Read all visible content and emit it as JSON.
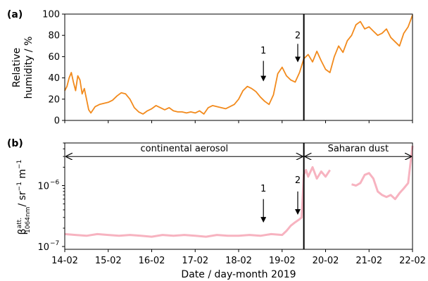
{
  "chart_data": [
    {
      "panel_label": "(a)",
      "type": "line",
      "ylabel_lines": [
        "Relative",
        "humidity / %"
      ],
      "xlim": [
        0,
        8
      ],
      "ylim": [
        0,
        100
      ],
      "yticks": [
        0,
        20,
        40,
        60,
        80,
        100
      ],
      "xticks": [
        0,
        1,
        2,
        3,
        4,
        5,
        6,
        7,
        8
      ],
      "series": [
        {
          "color": "#f28a1c",
          "x": [
            0.0,
            0.05,
            0.1,
            0.15,
            0.2,
            0.25,
            0.3,
            0.35,
            0.4,
            0.45,
            0.5,
            0.55,
            0.6,
            0.7,
            0.8,
            0.9,
            1.0,
            1.1,
            1.2,
            1.3,
            1.4,
            1.5,
            1.6,
            1.7,
            1.8,
            1.9,
            2.0,
            2.1,
            2.2,
            2.3,
            2.4,
            2.5,
            2.6,
            2.7,
            2.8,
            2.9,
            3.0,
            3.1,
            3.2,
            3.3,
            3.4,
            3.5,
            3.6,
            3.7,
            3.8,
            3.9,
            4.0,
            4.1,
            4.2,
            4.3,
            4.4,
            4.5,
            4.6,
            4.7,
            4.8,
            4.9,
            5.0,
            5.1,
            5.2,
            5.3,
            5.4,
            5.5,
            5.6,
            5.7,
            5.8,
            5.9,
            6.0,
            6.1,
            6.2,
            6.3,
            6.4,
            6.5,
            6.6,
            6.7,
            6.8,
            6.9,
            7.0,
            7.1,
            7.2,
            7.3,
            7.4,
            7.5,
            7.6,
            7.7,
            7.8,
            7.9,
            8.0
          ],
          "y": [
            28,
            32,
            40,
            45,
            36,
            28,
            42,
            38,
            25,
            30,
            20,
            10,
            7,
            13,
            15,
            16,
            17,
            19,
            23,
            26,
            25,
            20,
            12,
            8,
            6,
            9,
            11,
            14,
            12,
            10,
            12,
            9,
            8,
            8,
            7,
            8,
            7,
            9,
            6,
            12,
            14,
            13,
            12,
            11,
            13,
            15,
            20,
            28,
            32,
            30,
            27,
            22,
            18,
            15,
            24,
            44,
            50,
            42,
            38,
            36,
            45,
            58,
            62,
            55,
            65,
            56,
            48,
            45,
            60,
            70,
            64,
            75,
            80,
            90,
            93,
            86,
            88,
            84,
            80,
            82,
            86,
            78,
            74,
            70,
            82,
            88,
            99
          ]
        }
      ],
      "vline_x": 5.5,
      "annotations": [
        {
          "text": "1",
          "x": 4.57,
          "y_text": 63,
          "arrow_from_y": 56,
          "arrow_to_y": 38
        },
        {
          "text": "2",
          "x": 5.36,
          "y_text": 77,
          "arrow_from_y": 72,
          "arrow_to_y": 56
        }
      ]
    },
    {
      "panel_label": "(b)",
      "type": "line",
      "ylabel_main": "β",
      "ylabel_sup": "att.",
      "ylabel_sub": "1064nm",
      "ylabel_rest": "/ sr",
      "ylabel_exp1": "−1",
      "ylabel_m": " m",
      "ylabel_exp2": "−1",
      "y_scale": "log",
      "xlim": [
        0,
        8
      ],
      "ylim": [
        9e-08,
        5e-06
      ],
      "yticks": [
        {
          "value": 1e-07,
          "base": "10",
          "exp": "−7"
        },
        {
          "value": 1e-06,
          "base": "10",
          "exp": "−6"
        }
      ],
      "xticks": [
        {
          "value": 0,
          "label": "14-02"
        },
        {
          "value": 1,
          "label": "15-02"
        },
        {
          "value": 2,
          "label": "16-02"
        },
        {
          "value": 3,
          "label": "17-02"
        },
        {
          "value": 4,
          "label": "18-02"
        },
        {
          "value": 5,
          "label": "19-02"
        },
        {
          "value": 6,
          "label": "20-02"
        },
        {
          "value": 7,
          "label": "21-02"
        },
        {
          "value": 8,
          "label": "22-02"
        }
      ],
      "xlabel": "Date / day-month 2019",
      "series": [
        {
          "color": "#f7b3c0",
          "segments": [
            {
              "x": [
                0.0,
                0.25,
                0.5,
                0.75,
                1.0,
                1.25,
                1.5,
                1.75,
                2.0,
                2.25,
                2.5,
                2.75,
                3.0,
                3.25,
                3.5,
                3.75,
                4.0,
                4.25,
                4.5,
                4.75,
                5.0,
                5.1,
                5.2,
                5.3,
                5.4,
                5.45,
                5.5,
                5.55,
                5.6,
                5.7,
                5.8,
                5.9,
                6.0,
                6.1
              ],
              "y": [
                1.6e-07,
                1.55e-07,
                1.5e-07,
                1.6e-07,
                1.55e-07,
                1.5e-07,
                1.55e-07,
                1.5e-07,
                1.45e-07,
                1.55e-07,
                1.5e-07,
                1.55e-07,
                1.5e-07,
                1.45e-07,
                1.55e-07,
                1.5e-07,
                1.5e-07,
                1.55e-07,
                1.5e-07,
                1.6e-07,
                1.55e-07,
                1.8e-07,
                2.2e-07,
                2.5e-07,
                2.8e-07,
                3e-07,
                1.5e-06,
                1.8e-06,
                1.4e-06,
                2e-06,
                1.3e-06,
                1.7e-06,
                1.4e-06,
                1.8e-06
              ]
            },
            {
              "x": [
                6.6,
                6.7,
                6.8,
                6.9,
                7.0,
                7.1,
                7.2,
                7.3,
                7.4,
                7.5,
                7.6,
                7.7,
                7.8,
                7.9,
                8.0
              ],
              "y": [
                1.05e-06,
                1e-06,
                1.1e-06,
                1.5e-06,
                1.6e-06,
                1.3e-06,
                8e-07,
                7e-07,
                6.5e-07,
                7e-07,
                6e-07,
                7.5e-07,
                9e-07,
                1.1e-06,
                4.5e-06
              ]
            }
          ]
        }
      ],
      "vline_x": 5.5,
      "ranges": [
        {
          "text": "continental aerosol",
          "x_start": 0,
          "x_end": 5.5
        },
        {
          "text": "Saharan dust",
          "x_start": 5.5,
          "x_end": 8
        }
      ],
      "range_y": 3e-06,
      "annotations": [
        {
          "text": "1",
          "x": 4.57,
          "y_text": 8e-07,
          "arrow_from_y": 6e-07,
          "arrow_to_y": 2.6e-07
        },
        {
          "text": "2",
          "x": 5.36,
          "y_text": 1.1e-06,
          "arrow_from_y": 8e-07,
          "arrow_to_y": 3.5e-07
        }
      ]
    }
  ]
}
